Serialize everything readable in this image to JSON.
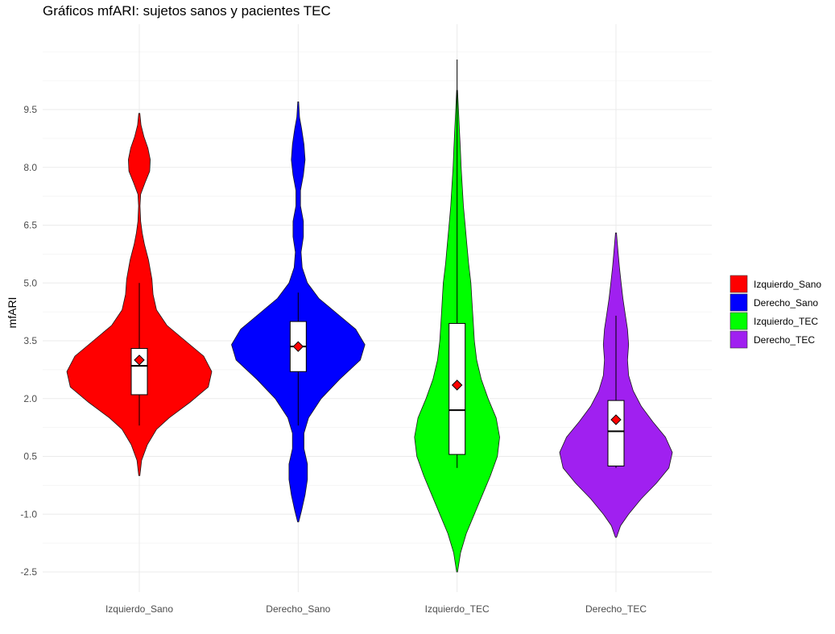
{
  "chart_data": {
    "type": "violin",
    "title": "Gráficos mfARI: sujetos sanos y pacientes TEC",
    "xlabel": "",
    "ylabel": "mfARI",
    "ylim": [
      -3.0,
      11.5
    ],
    "yticks": [
      9.5,
      8.0,
      6.5,
      5.0,
      3.5,
      2.0,
      0.5,
      -1.0,
      -2.5
    ],
    "ytick_labels": [
      "9.5",
      "8.0",
      "6.5",
      "5.0",
      "3.5",
      "2.0",
      "0.5",
      "-1.0",
      "-2.5"
    ],
    "categories": [
      "Izquierdo_Sano",
      "Derecho_Sano",
      "Izquierdo_TEC",
      "Derecho_TEC"
    ],
    "grid": true,
    "legend_position": "right",
    "series": [
      {
        "name": "Izquierdo_Sano",
        "color": "#ff0000",
        "violin_min": 0.0,
        "violin_max": 9.4,
        "density_profile": [
          [
            0.0,
            0.005
          ],
          [
            0.4,
            0.02
          ],
          [
            0.8,
            0.07
          ],
          [
            1.2,
            0.15
          ],
          [
            1.5,
            0.26
          ],
          [
            1.9,
            0.44
          ],
          [
            2.3,
            0.6
          ],
          [
            2.7,
            0.63
          ],
          [
            3.1,
            0.56
          ],
          [
            3.5,
            0.4
          ],
          [
            3.9,
            0.24
          ],
          [
            4.3,
            0.15
          ],
          [
            4.7,
            0.12
          ],
          [
            5.1,
            0.11
          ],
          [
            5.6,
            0.08
          ],
          [
            6.0,
            0.045
          ],
          [
            6.3,
            0.025
          ],
          [
            6.6,
            0.012
          ],
          [
            7.0,
            0.006
          ],
          [
            7.3,
            0.012
          ],
          [
            7.6,
            0.05
          ],
          [
            7.9,
            0.09
          ],
          [
            8.2,
            0.095
          ],
          [
            8.5,
            0.075
          ],
          [
            8.8,
            0.04
          ],
          [
            9.1,
            0.015
          ],
          [
            9.4,
            0.005
          ]
        ],
        "box": {
          "q1": 2.1,
          "median": 2.85,
          "q3": 3.3,
          "whisker_low": 1.3,
          "whisker_high": 5.0
        },
        "mean": 3.0
      },
      {
        "name": "Derecho_Sano",
        "color": "#0000ff",
        "violin_min": -1.2,
        "violin_max": 9.7,
        "density_profile": [
          [
            -1.2,
            0.005
          ],
          [
            -0.9,
            0.03
          ],
          [
            -0.5,
            0.06
          ],
          [
            -0.1,
            0.08
          ],
          [
            0.3,
            0.08
          ],
          [
            0.7,
            0.05
          ],
          [
            1.1,
            0.05
          ],
          [
            1.5,
            0.09
          ],
          [
            2.0,
            0.2
          ],
          [
            2.5,
            0.36
          ],
          [
            3.0,
            0.54
          ],
          [
            3.4,
            0.58
          ],
          [
            3.8,
            0.5
          ],
          [
            4.2,
            0.34
          ],
          [
            4.6,
            0.18
          ],
          [
            5.0,
            0.08
          ],
          [
            5.4,
            0.035
          ],
          [
            5.8,
            0.025
          ],
          [
            6.2,
            0.045
          ],
          [
            6.6,
            0.045
          ],
          [
            7.0,
            0.02
          ],
          [
            7.4,
            0.02
          ],
          [
            7.8,
            0.045
          ],
          [
            8.2,
            0.06
          ],
          [
            8.6,
            0.05
          ],
          [
            9.0,
            0.03
          ],
          [
            9.3,
            0.012
          ],
          [
            9.7,
            0.004
          ]
        ],
        "box": {
          "q1": 2.7,
          "median": 3.35,
          "q3": 4.0,
          "whisker_low": 1.3,
          "whisker_high": 4.75
        },
        "mean": 3.35
      },
      {
        "name": "Izquierdo_TEC",
        "color": "#00ff00",
        "violin_min": -2.5,
        "violin_max": 10.0,
        "density_profile": [
          [
            -2.5,
            0.004
          ],
          [
            -2.0,
            0.03
          ],
          [
            -1.5,
            0.08
          ],
          [
            -1.0,
            0.15
          ],
          [
            -0.5,
            0.22
          ],
          [
            0.0,
            0.29
          ],
          [
            0.5,
            0.35
          ],
          [
            1.0,
            0.37
          ],
          [
            1.5,
            0.34
          ],
          [
            2.0,
            0.27
          ],
          [
            2.5,
            0.21
          ],
          [
            3.0,
            0.17
          ],
          [
            3.5,
            0.15
          ],
          [
            4.0,
            0.14
          ],
          [
            4.5,
            0.13
          ],
          [
            5.0,
            0.12
          ],
          [
            5.5,
            0.1
          ],
          [
            6.0,
            0.085
          ],
          [
            6.5,
            0.07
          ],
          [
            7.0,
            0.055
          ],
          [
            7.5,
            0.045
          ],
          [
            8.0,
            0.035
          ],
          [
            8.5,
            0.028
          ],
          [
            9.0,
            0.02
          ],
          [
            9.5,
            0.012
          ],
          [
            10.0,
            0.004
          ]
        ],
        "box": {
          "q1": 0.55,
          "median": 1.7,
          "q3": 3.95,
          "whisker_low": 0.2,
          "whisker_high": 10.8
        },
        "mean": 2.35
      },
      {
        "name": "Derecho_TEC",
        "color": "#a020f0",
        "violin_min": -1.6,
        "violin_max": 6.3,
        "density_profile": [
          [
            -1.6,
            0.005
          ],
          [
            -1.3,
            0.04
          ],
          [
            -1.0,
            0.11
          ],
          [
            -0.6,
            0.22
          ],
          [
            -0.2,
            0.35
          ],
          [
            0.2,
            0.46
          ],
          [
            0.6,
            0.49
          ],
          [
            1.0,
            0.43
          ],
          [
            1.4,
            0.32
          ],
          [
            1.8,
            0.22
          ],
          [
            2.2,
            0.15
          ],
          [
            2.6,
            0.11
          ],
          [
            3.0,
            0.1
          ],
          [
            3.4,
            0.11
          ],
          [
            3.8,
            0.1
          ],
          [
            4.2,
            0.08
          ],
          [
            4.6,
            0.06
          ],
          [
            5.0,
            0.045
          ],
          [
            5.4,
            0.03
          ],
          [
            5.8,
            0.018
          ],
          [
            6.3,
            0.004
          ]
        ],
        "box": {
          "q1": 0.25,
          "median": 1.15,
          "q3": 1.95,
          "whisker_low": 0.2,
          "whisker_high": 4.15
        },
        "mean": 1.45
      }
    ],
    "legend": [
      {
        "label": "Izquierdo_Sano",
        "color": "#ff0000"
      },
      {
        "label": "Derecho_Sano",
        "color": "#0000ff"
      },
      {
        "label": "Izquierdo_TEC",
        "color": "#00ff00"
      },
      {
        "label": "Derecho_TEC",
        "color": "#a020f0"
      }
    ],
    "mean_marker_color": "#ff0000"
  }
}
